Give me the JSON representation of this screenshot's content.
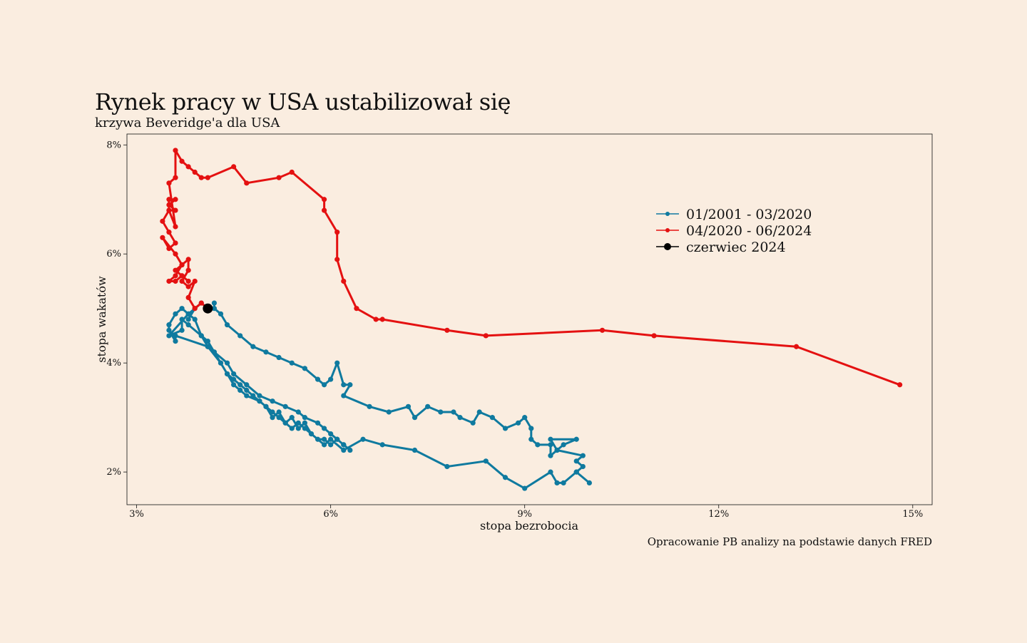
{
  "title": "Rynek pracy w USA ustabilizował się",
  "subtitle": "krzywa Beveridge'a dla USA",
  "source": "Opracowanie PB analizy na podstawie danych FRED",
  "colors": {
    "background": "#faede0",
    "series_pre": "#0f7a9f",
    "series_post": "#e41111",
    "highlight": "#000000"
  },
  "chart_data": {
    "type": "line",
    "xlabel": "stopa bezrobocia",
    "ylabel": "stopa wakatów",
    "xlim": [
      2.85,
      15.3
    ],
    "ylim": [
      1.4,
      8.2
    ],
    "xticks": [
      3,
      6,
      9,
      12,
      15
    ],
    "xtick_labels": [
      "3%",
      "6%",
      "9%",
      "12%",
      "15%"
    ],
    "yticks": [
      2,
      4,
      6,
      8
    ],
    "ytick_labels": [
      "2%",
      "4%",
      "6%",
      "8%"
    ],
    "grid": false,
    "legend": "top-right",
    "series": [
      {
        "name": "01/2001 - 03/2020",
        "color": "#0f7a9f",
        "points": [
          [
            4.2,
            5.1
          ],
          [
            4.2,
            5.0
          ],
          [
            4.3,
            4.9
          ],
          [
            4.4,
            4.7
          ],
          [
            4.6,
            4.5
          ],
          [
            4.8,
            4.3
          ],
          [
            5.0,
            4.2
          ],
          [
            5.2,
            4.1
          ],
          [
            5.4,
            4.0
          ],
          [
            5.6,
            3.9
          ],
          [
            5.8,
            3.7
          ],
          [
            5.9,
            3.6
          ],
          [
            6.0,
            3.7
          ],
          [
            6.1,
            4.0
          ],
          [
            6.2,
            3.6
          ],
          [
            6.3,
            3.6
          ],
          [
            6.2,
            3.4
          ],
          [
            6.6,
            3.2
          ],
          [
            6.9,
            3.1
          ],
          [
            7.2,
            3.2
          ],
          [
            7.3,
            3.0
          ],
          [
            7.5,
            3.2
          ],
          [
            7.7,
            3.1
          ],
          [
            7.9,
            3.1
          ],
          [
            8.0,
            3.0
          ],
          [
            8.2,
            2.9
          ],
          [
            8.3,
            3.1
          ],
          [
            8.5,
            3.0
          ],
          [
            8.7,
            2.8
          ],
          [
            8.9,
            2.9
          ],
          [
            9.0,
            3.0
          ],
          [
            9.1,
            2.8
          ],
          [
            9.1,
            2.6
          ],
          [
            9.2,
            2.5
          ],
          [
            9.4,
            2.5
          ],
          [
            9.4,
            2.3
          ],
          [
            9.5,
            2.4
          ],
          [
            9.6,
            2.5
          ],
          [
            9.8,
            2.6
          ],
          [
            9.4,
            2.6
          ],
          [
            9.5,
            2.4
          ],
          [
            9.9,
            2.3
          ],
          [
            9.8,
            2.2
          ],
          [
            9.9,
            2.1
          ],
          [
            9.8,
            2.0
          ],
          [
            10.0,
            1.8
          ],
          [
            9.8,
            2.0
          ],
          [
            9.6,
            1.8
          ],
          [
            9.5,
            1.8
          ],
          [
            9.4,
            2.0
          ],
          [
            9.0,
            1.7
          ],
          [
            8.7,
            1.9
          ],
          [
            8.4,
            2.2
          ],
          [
            7.8,
            2.1
          ],
          [
            7.3,
            2.4
          ],
          [
            6.8,
            2.5
          ],
          [
            6.5,
            2.6
          ],
          [
            6.2,
            2.4
          ],
          [
            6.0,
            2.6
          ],
          [
            5.9,
            2.5
          ],
          [
            5.7,
            2.7
          ],
          [
            5.6,
            2.9
          ],
          [
            5.5,
            2.8
          ],
          [
            5.4,
            3.0
          ],
          [
            5.3,
            2.9
          ],
          [
            5.2,
            3.1
          ],
          [
            5.1,
            3.0
          ],
          [
            5.0,
            3.2
          ],
          [
            4.9,
            3.3
          ],
          [
            4.8,
            3.4
          ],
          [
            4.7,
            3.5
          ],
          [
            4.6,
            3.6
          ],
          [
            4.5,
            3.7
          ],
          [
            4.4,
            3.8
          ],
          [
            4.3,
            4.0
          ],
          [
            4.2,
            4.2
          ],
          [
            4.1,
            4.4
          ],
          [
            4.0,
            4.5
          ],
          [
            3.9,
            4.8
          ],
          [
            3.8,
            4.9
          ],
          [
            3.7,
            5.0
          ],
          [
            3.6,
            4.9
          ],
          [
            3.5,
            4.7
          ],
          [
            3.5,
            4.6
          ],
          [
            3.6,
            4.4
          ],
          [
            3.6,
            4.5
          ],
          [
            4.1,
            4.3
          ],
          [
            4.3,
            4.0
          ],
          [
            4.4,
            3.8
          ],
          [
            4.5,
            3.6
          ],
          [
            4.6,
            3.5
          ],
          [
            4.7,
            3.4
          ],
          [
            4.9,
            3.3
          ],
          [
            5.0,
            3.2
          ],
          [
            5.1,
            3.1
          ],
          [
            5.2,
            3.0
          ],
          [
            5.3,
            2.9
          ],
          [
            5.4,
            2.8
          ],
          [
            5.5,
            2.9
          ],
          [
            5.6,
            2.8
          ],
          [
            5.7,
            2.7
          ],
          [
            5.8,
            2.6
          ],
          [
            5.9,
            2.6
          ],
          [
            6.0,
            2.5
          ],
          [
            6.1,
            2.6
          ],
          [
            6.2,
            2.5
          ],
          [
            6.3,
            2.4
          ],
          [
            6.2,
            2.5
          ],
          [
            6.1,
            2.6
          ],
          [
            6.0,
            2.7
          ],
          [
            5.9,
            2.8
          ],
          [
            5.8,
            2.9
          ],
          [
            5.6,
            3.0
          ],
          [
            5.5,
            3.1
          ],
          [
            5.3,
            3.2
          ],
          [
            5.1,
            3.3
          ],
          [
            4.9,
            3.4
          ],
          [
            4.7,
            3.6
          ],
          [
            4.5,
            3.8
          ],
          [
            4.4,
            4.0
          ],
          [
            4.2,
            4.2
          ],
          [
            4.1,
            4.3
          ],
          [
            4.0,
            4.5
          ],
          [
            3.8,
            4.7
          ],
          [
            3.7,
            4.8
          ],
          [
            3.7,
            4.6
          ],
          [
            3.5,
            4.5
          ],
          [
            3.8,
            4.9
          ],
          [
            4.0,
            5.1
          ],
          [
            3.9,
            5.0
          ],
          [
            3.8,
            4.8
          ]
        ]
      },
      {
        "name": "04/2020 - 06/2024",
        "color": "#e41111",
        "points": [
          [
            14.8,
            3.6
          ],
          [
            13.2,
            4.3
          ],
          [
            11.0,
            4.5
          ],
          [
            10.2,
            4.6
          ],
          [
            8.4,
            4.5
          ],
          [
            7.8,
            4.6
          ],
          [
            6.8,
            4.8
          ],
          [
            6.7,
            4.8
          ],
          [
            6.4,
            5.0
          ],
          [
            6.2,
            5.5
          ],
          [
            6.1,
            5.9
          ],
          [
            6.1,
            6.4
          ],
          [
            5.9,
            6.8
          ],
          [
            5.9,
            7.0
          ],
          [
            5.4,
            7.5
          ],
          [
            5.2,
            7.4
          ],
          [
            4.7,
            7.3
          ],
          [
            4.5,
            7.6
          ],
          [
            4.1,
            7.4
          ],
          [
            4.0,
            7.4
          ],
          [
            3.9,
            7.5
          ],
          [
            3.8,
            7.6
          ],
          [
            3.7,
            7.7
          ],
          [
            3.6,
            7.9
          ],
          [
            3.6,
            7.4
          ],
          [
            3.5,
            7.3
          ],
          [
            3.6,
            6.5
          ],
          [
            3.5,
            6.8
          ],
          [
            3.6,
            6.8
          ],
          [
            3.5,
            6.9
          ],
          [
            3.6,
            7.0
          ],
          [
            3.5,
            7.0
          ],
          [
            3.5,
            6.8
          ],
          [
            3.4,
            6.6
          ],
          [
            3.5,
            6.4
          ],
          [
            3.6,
            6.2
          ],
          [
            3.5,
            6.1
          ],
          [
            3.4,
            6.3
          ],
          [
            3.6,
            6.0
          ],
          [
            3.7,
            5.8
          ],
          [
            3.6,
            5.7
          ],
          [
            3.7,
            5.6
          ],
          [
            3.8,
            5.5
          ],
          [
            3.7,
            5.6
          ],
          [
            3.6,
            5.5
          ],
          [
            3.5,
            5.5
          ],
          [
            3.6,
            5.6
          ],
          [
            3.7,
            5.8
          ],
          [
            3.8,
            5.9
          ],
          [
            3.8,
            5.7
          ],
          [
            3.7,
            5.5
          ],
          [
            3.8,
            5.4
          ],
          [
            3.9,
            5.5
          ],
          [
            3.8,
            5.2
          ],
          [
            3.9,
            5.0
          ],
          [
            4.0,
            5.1
          ],
          [
            4.1,
            5.0
          ]
        ]
      },
      {
        "name": "czerwiec 2024",
        "color": "#000000",
        "points": [
          [
            4.1,
            5.0
          ]
        ]
      }
    ]
  }
}
